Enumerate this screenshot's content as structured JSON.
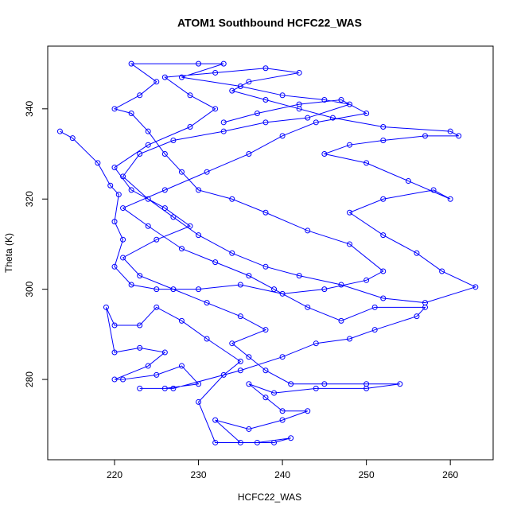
{
  "chart_data": {
    "type": "line",
    "title": "ATOM1 Southbound HCFC22_WAS",
    "x_label": "HCFC22_WAS",
    "y_label": "Theta (K)",
    "color": "#0000ff",
    "x": [
      213.5,
      215,
      218,
      219.5,
      220.5,
      220,
      221,
      220,
      222,
      225,
      230,
      235,
      240,
      245,
      250,
      252,
      248,
      243,
      238,
      234,
      230,
      228,
      226,
      224,
      222,
      220,
      223,
      225,
      222,
      230,
      233,
      228,
      235,
      240,
      245,
      248,
      243,
      238,
      233,
      227,
      223,
      221,
      224,
      227,
      230,
      234,
      238,
      242,
      247,
      252,
      257,
      263,
      259,
      256,
      252,
      248,
      252,
      258,
      260,
      255,
      250,
      245,
      248,
      252,
      257,
      261,
      260,
      252,
      246,
      242,
      238,
      234,
      236,
      242,
      238,
      232,
      226,
      229,
      232,
      229,
      224,
      220,
      222,
      226,
      229,
      225,
      221,
      223,
      227,
      231,
      235,
      238,
      234,
      236,
      238,
      241,
      245,
      250,
      254,
      250,
      244,
      239,
      236,
      238,
      240,
      243,
      240,
      236,
      232,
      235,
      239,
      241,
      237,
      232,
      230,
      233,
      235,
      231,
      228,
      225,
      223,
      220,
      219,
      220,
      223,
      226,
      224,
      220,
      221,
      225,
      228,
      230,
      226,
      223,
      227,
      235,
      240,
      244,
      248,
      251,
      256,
      257,
      251,
      247,
      243,
      239,
      236,
      232,
      228,
      224,
      221,
      226,
      231,
      236,
      240,
      244,
      250,
      247,
      242,
      237,
      233
    ],
    "values": [
      335,
      333.5,
      328,
      323,
      321,
      315,
      311,
      305,
      301,
      300,
      300,
      301,
      299,
      300,
      302,
      304,
      310,
      313,
      317,
      320,
      322,
      326,
      330,
      335,
      339,
      340,
      343,
      346,
      350,
      350,
      350,
      347,
      345,
      343,
      342,
      341,
      338,
      337,
      335,
      333,
      330,
      325,
      320,
      316,
      312,
      308,
      305,
      303,
      301,
      298,
      297,
      300.5,
      304,
      308,
      312,
      317,
      320,
      322,
      320,
      324,
      328,
      330,
      332,
      333,
      334,
      334,
      335,
      336,
      338,
      340,
      342,
      344,
      346,
      348,
      349,
      348,
      347,
      343,
      340,
      336,
      332,
      327,
      322,
      318,
      314,
      311,
      307,
      303,
      300,
      297,
      294,
      291,
      288,
      285,
      282,
      279,
      279,
      279,
      279,
      278,
      278,
      277,
      279,
      276,
      273,
      273,
      271,
      269,
      271,
      266,
      266,
      267,
      266,
      266,
      275,
      281,
      284,
      289,
      293,
      296,
      292,
      292,
      296,
      286,
      287,
      286,
      283,
      280,
      280,
      281,
      283,
      279,
      278,
      278,
      278,
      282,
      285,
      288,
      289,
      291,
      294,
      296,
      296,
      293,
      296,
      300,
      303,
      306,
      309,
      314,
      318,
      322,
      326,
      330,
      334,
      337,
      339,
      342,
      341,
      339,
      337
    ],
    "xlim": [
      212.04,
      265.1
    ],
    "ylim": [
      262.2,
      353.9
    ],
    "xticks": [
      220,
      230,
      240,
      250,
      260
    ],
    "yticks": [
      280,
      300,
      320,
      340
    ]
  }
}
